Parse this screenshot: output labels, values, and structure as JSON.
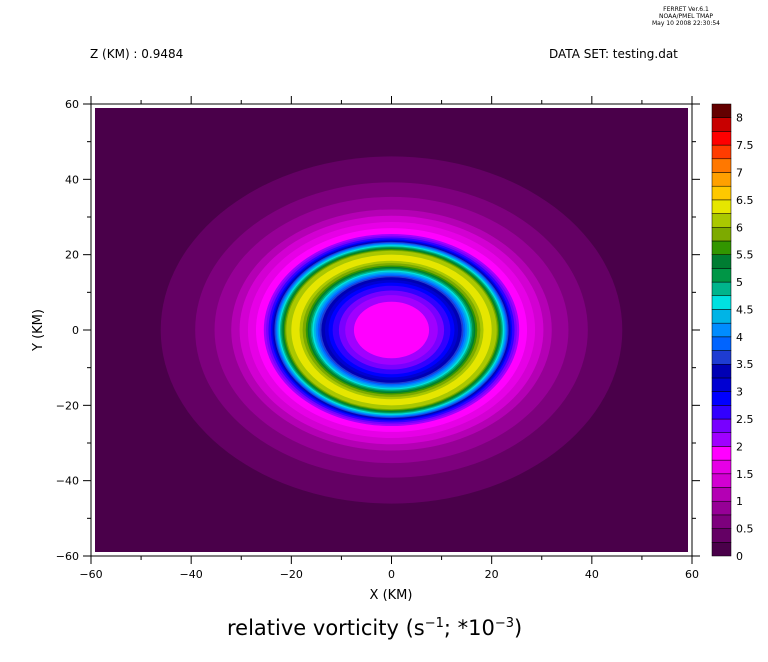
{
  "header": {
    "stamp_line1": "FERRET  Ver.6.1",
    "stamp_line2": "NOAA/PMEL TMAP",
    "stamp_line3": "May 10 2008 22:30:54",
    "z_label": "Z (KM) : 0.9484",
    "dataset_label": "DATA SET: testing.dat"
  },
  "chart_data": {
    "type": "heatmap",
    "title": "relative vorticity (s⁻¹; *10⁻³)",
    "title_parts": {
      "text": "relative vorticity (s",
      "sup1": "−1",
      "mid": "; *10",
      "sup2": "−3",
      "end": ")"
    },
    "xlabel": "X (KM)",
    "ylabel": "Y (KM)",
    "xlim": [
      -60,
      60
    ],
    "ylim": [
      -60,
      60
    ],
    "xticks": [
      -60,
      -40,
      -20,
      0,
      20,
      40,
      60
    ],
    "yticks": [
      -60,
      -40,
      -20,
      0,
      20,
      40,
      60
    ],
    "xtick_labels": [
      "−60",
      "−40",
      "−20",
      "0",
      "20",
      "40",
      "60"
    ],
    "ytick_labels": [
      "−60",
      "−40",
      "−20",
      "0",
      "20",
      "40",
      "60"
    ],
    "field": "annular vortex centred at (0,0): ~1.8 in core, ~2.5 ring near r=11, ~6.5 maximum near r=19, ~2 ring near r=25, decaying to ~0 beyond r=48",
    "colorbar": {
      "levels": [
        0,
        0.25,
        0.5,
        0.75,
        1,
        1.25,
        1.5,
        1.75,
        2,
        2.25,
        2.5,
        2.75,
        3,
        3.25,
        3.5,
        3.75,
        4,
        4.25,
        4.5,
        4.75,
        5,
        5.25,
        5.5,
        5.75,
        6,
        6.25,
        6.5,
        6.75,
        7,
        7.25,
        7.5,
        7.75,
        8
      ],
      "labels": [
        "0",
        "0.5",
        "1",
        "1.5",
        "2",
        "2.5",
        "3",
        "3.5",
        "4",
        "4.5",
        "5",
        "5.5",
        "6",
        "6.5",
        "7",
        "7.5",
        "8"
      ],
      "colors": [
        "#4a004a",
        "#640064",
        "#7d007d",
        "#960096",
        "#b400b4",
        "#d200d2",
        "#e600e6",
        "#ff00ff",
        "#a000ff",
        "#7800ff",
        "#3200ff",
        "#0000ff",
        "#0000d2",
        "#0000b4",
        "#1e3cd2",
        "#0064ff",
        "#008cff",
        "#00b4e6",
        "#00e1e1",
        "#00b48c",
        "#009646",
        "#007d32",
        "#329600",
        "#7daa00",
        "#aac800",
        "#e6e600",
        "#ffc800",
        "#ffa000",
        "#ff7800",
        "#ff3c00",
        "#ff0000",
        "#c80000",
        "#640000"
      ]
    }
  }
}
